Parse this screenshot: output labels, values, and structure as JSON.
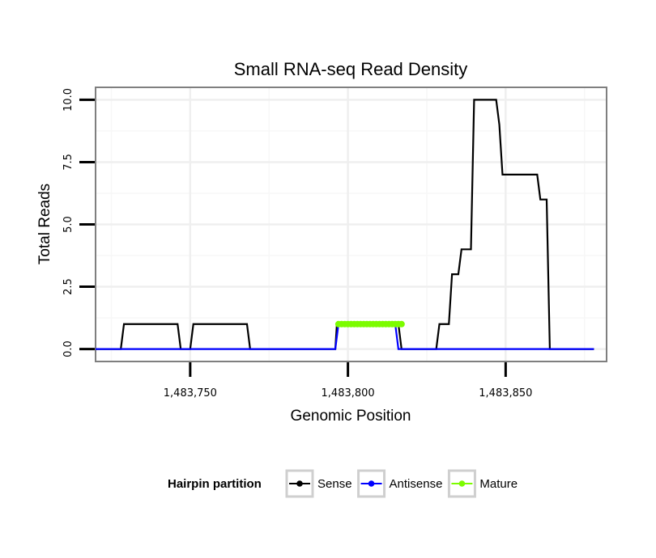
{
  "chart_data": {
    "type": "line",
    "title": "Small RNA-seq Read Density",
    "xlabel": "Genomic Position",
    "ylabel": "Total Reads",
    "xlim": [
      1483720,
      1483882
    ],
    "ylim": [
      -0.5,
      10.5
    ],
    "x_ticks": [
      1483750,
      1483800,
      1483850
    ],
    "x_tick_labels": [
      "1,483,750",
      "1,483,800",
      "1,483,850"
    ],
    "y_ticks": [
      0,
      2.5,
      5,
      7.5,
      10
    ],
    "y_tick_labels": [
      "0.0",
      "2.5",
      "5.0",
      "7.5",
      "10.0"
    ],
    "grid": true,
    "legend": {
      "title": "Hairpin partition",
      "position": "bottom"
    },
    "series": [
      {
        "name": "Sense",
        "color": "#000000",
        "points": [
          [
            1483720,
            0
          ],
          [
            1483728,
            0
          ],
          [
            1483729,
            1
          ],
          [
            1483746,
            1
          ],
          [
            1483747,
            0
          ],
          [
            1483750,
            0
          ],
          [
            1483751,
            1
          ],
          [
            1483768,
            1
          ],
          [
            1483769,
            0
          ],
          [
            1483796,
            0
          ],
          [
            1483796.5,
            1
          ],
          [
            1483816,
            1
          ],
          [
            1483817,
            0
          ],
          [
            1483828,
            0
          ],
          [
            1483829,
            1
          ],
          [
            1483832,
            1
          ],
          [
            1483833,
            3
          ],
          [
            1483835,
            3
          ],
          [
            1483836,
            4
          ],
          [
            1483839,
            4
          ],
          [
            1483840,
            10
          ],
          [
            1483847,
            10
          ],
          [
            1483848,
            9
          ],
          [
            1483849,
            7
          ],
          [
            1483860,
            7
          ],
          [
            1483861,
            6
          ],
          [
            1483863,
            6
          ],
          [
            1483864,
            0
          ],
          [
            1483878,
            0
          ]
        ]
      },
      {
        "name": "Antisense",
        "color": "#0000ff",
        "points": [
          [
            1483720,
            0
          ],
          [
            1483796,
            0
          ],
          [
            1483797,
            1
          ],
          [
            1483815,
            1
          ],
          [
            1483816,
            0
          ],
          [
            1483878,
            0
          ]
        ]
      },
      {
        "name": "Mature",
        "color": "#7cfc00",
        "points": [
          [
            1483797,
            1
          ],
          [
            1483798,
            1
          ],
          [
            1483799,
            1
          ],
          [
            1483800,
            1
          ],
          [
            1483801,
            1
          ],
          [
            1483802,
            1
          ],
          [
            1483803,
            1
          ],
          [
            1483804,
            1
          ],
          [
            1483805,
            1
          ],
          [
            1483806,
            1
          ],
          [
            1483807,
            1
          ],
          [
            1483808,
            1
          ],
          [
            1483809,
            1
          ],
          [
            1483810,
            1
          ],
          [
            1483811,
            1
          ],
          [
            1483812,
            1
          ],
          [
            1483813,
            1
          ],
          [
            1483814,
            1
          ],
          [
            1483815,
            1
          ],
          [
            1483816,
            1
          ],
          [
            1483817,
            1
          ]
        ]
      }
    ]
  }
}
